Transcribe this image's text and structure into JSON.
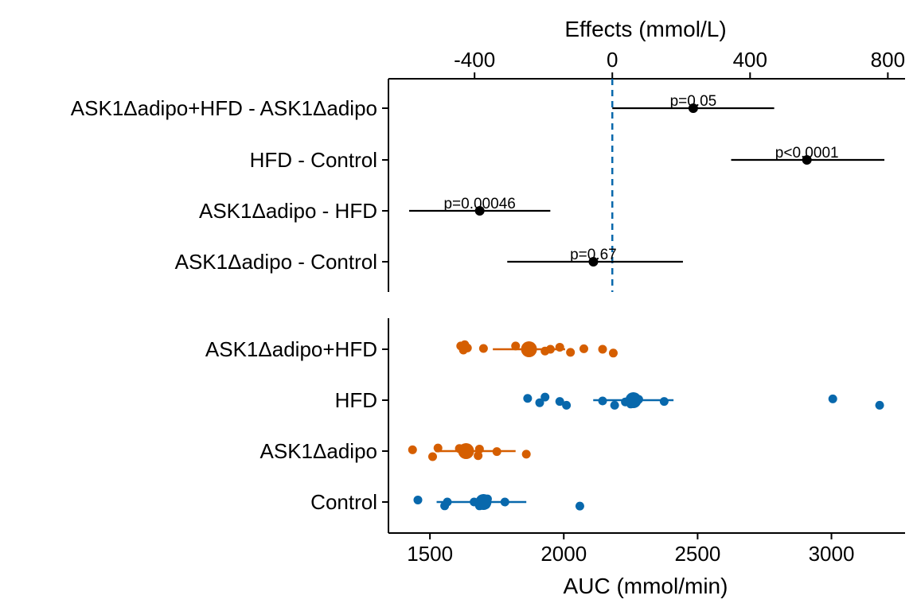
{
  "chart_data": [
    {
      "type": "forest",
      "panel": "effects",
      "xlabel": "Effects (mmol/L)",
      "xlim": [
        -650,
        850
      ],
      "ticks": [
        -400,
        0,
        400,
        800
      ],
      "tick_labels": [
        "-400",
        "0",
        "400",
        "800"
      ],
      "reference_line": 0,
      "rows": [
        {
          "label": "ASK1Δadipo+HFD - ASK1Δadipo",
          "estimate": 235,
          "ci": [
            0,
            470
          ],
          "p_label": "p=0.05"
        },
        {
          "label": "HFD - Control",
          "estimate": 565,
          "ci": [
            345,
            790
          ],
          "p_label": "p<0.0001"
        },
        {
          "label": "ASK1Δadipo - HFD",
          "estimate": -385,
          "ci": [
            -590,
            -180
          ],
          "p_label": "p=0.00046"
        },
        {
          "label": "ASK1Δadipo - Control",
          "estimate": -55,
          "ci": [
            -305,
            205
          ],
          "p_label": "p=0.67"
        }
      ]
    },
    {
      "type": "scatter",
      "panel": "auc",
      "xlabel": "AUC (mmol/min)",
      "xlim": [
        1345,
        3275
      ],
      "ticks": [
        1500,
        2000,
        2500,
        3000
      ],
      "tick_labels": [
        "1500",
        "2000",
        "2500",
        "3000"
      ],
      "colors": {
        "orange": "#D55E00",
        "blue": "#0868AC"
      },
      "groups": [
        {
          "label": "ASK1Δadipo+HFD",
          "color": "#D55E00",
          "mean": 1870,
          "range": [
            1735,
            2005
          ],
          "points": [
            [
              1625,
              0.03
            ],
            [
              1640,
              -0.05
            ],
            [
              1615,
              -0.13
            ],
            [
              1630,
              -0.18
            ],
            [
              1700,
              -0.03
            ],
            [
              1820,
              -0.13
            ],
            [
              1870,
              0.03
            ],
            [
              1860,
              -0.02
            ],
            [
              1930,
              0.07
            ],
            [
              1950,
              0.0
            ],
            [
              1985,
              -0.08
            ],
            [
              2025,
              0.12
            ],
            [
              2075,
              -0.02
            ],
            [
              2145,
              0.0
            ],
            [
              2185,
              0.15
            ]
          ]
        },
        {
          "label": "HFD",
          "color": "#0868AC",
          "mean": 2260,
          "range": [
            2110,
            2410
          ],
          "points": [
            [
              1865,
              -0.07
            ],
            [
              1910,
              0.1
            ],
            [
              1930,
              -0.12
            ],
            [
              1985,
              0.05
            ],
            [
              2010,
              0.2
            ],
            [
              2145,
              0.03
            ],
            [
              2190,
              0.2
            ],
            [
              2230,
              0.07
            ],
            [
              2250,
              0.15
            ],
            [
              2260,
              0.08
            ],
            [
              2280,
              -0.03
            ],
            [
              2375,
              0.05
            ],
            [
              3005,
              -0.05
            ],
            [
              3180,
              0.2
            ]
          ]
        },
        {
          "label": "ASK1Δadipo",
          "color": "#D55E00",
          "mean": 1635,
          "range": [
            1520,
            1820
          ],
          "points": [
            [
              1435,
              -0.05
            ],
            [
              1510,
              0.22
            ],
            [
              1530,
              -0.12
            ],
            [
              1610,
              -0.1
            ],
            [
              1630,
              0.05
            ],
            [
              1680,
              0.18
            ],
            [
              1685,
              -0.08
            ],
            [
              1750,
              0.02
            ],
            [
              1860,
              0.12
            ]
          ]
        },
        {
          "label": "Control",
          "color": "#0868AC",
          "mean": 1700,
          "range": [
            1525,
            1860
          ],
          "points": [
            [
              1455,
              -0.08
            ],
            [
              1555,
              0.15
            ],
            [
              1565,
              0.0
            ],
            [
              1665,
              0.0
            ],
            [
              1685,
              0.15
            ],
            [
              1690,
              0.05
            ],
            [
              1700,
              -0.05
            ],
            [
              1710,
              0.1
            ],
            [
              1715,
              -0.12
            ],
            [
              1780,
              0.0
            ],
            [
              2060,
              0.16
            ]
          ]
        }
      ]
    }
  ]
}
